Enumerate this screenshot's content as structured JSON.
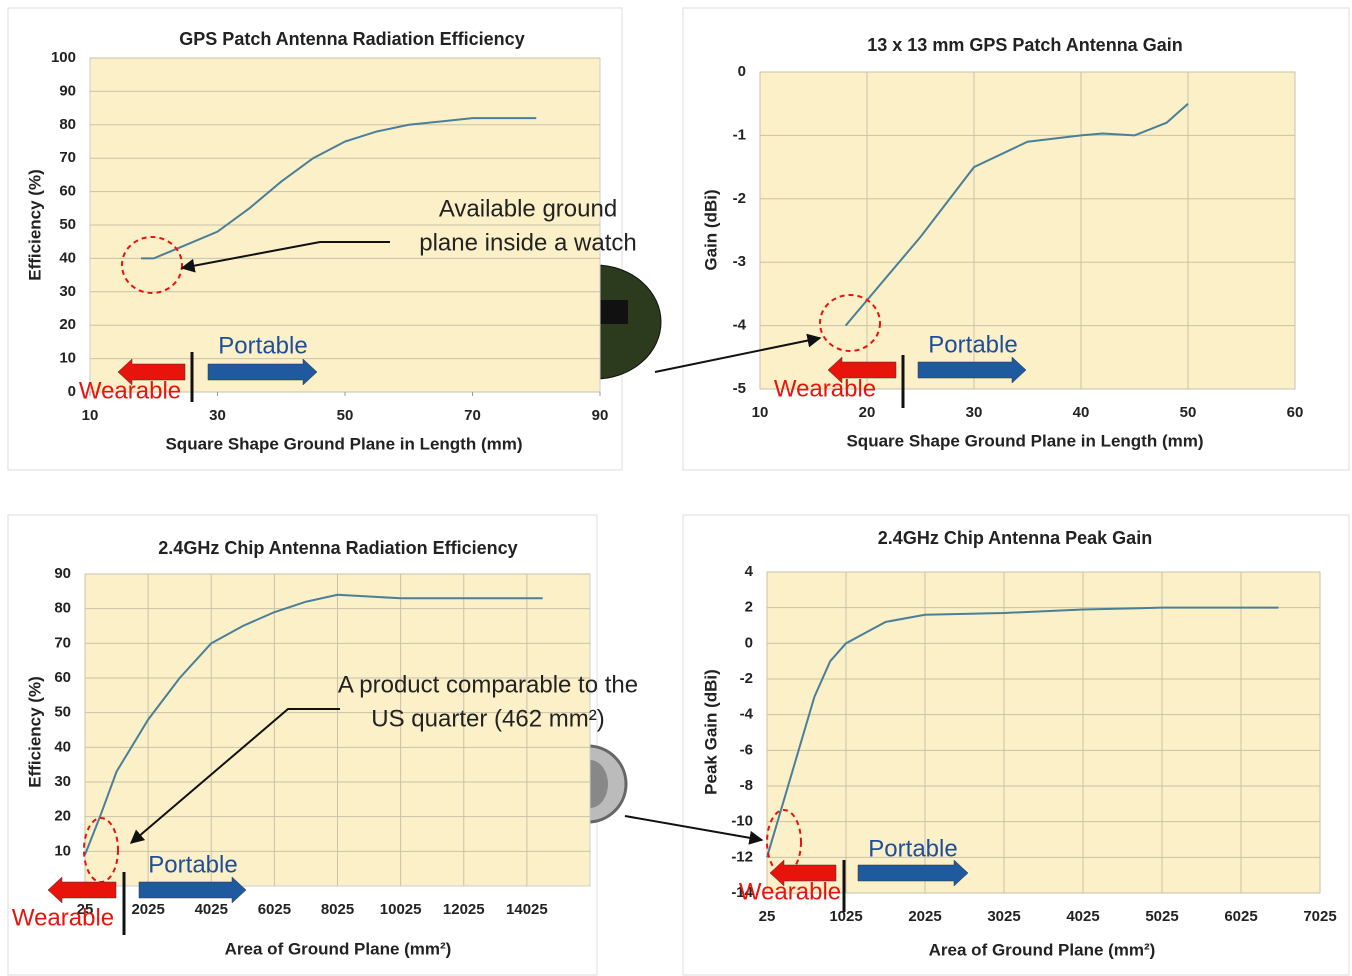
{
  "chart_data": [
    {
      "type": "line",
      "title": "GPS Patch Antenna Radiation Efficiency",
      "x_label": "Square Shape Ground Plane in Length (mm)",
      "y_label": "Efficiency (%)",
      "xlim": [
        10,
        90
      ],
      "xticks": [
        10,
        30,
        50,
        70,
        90
      ],
      "ylim": [
        0,
        100
      ],
      "yticks": [
        0,
        10,
        20,
        30,
        40,
        50,
        60,
        70,
        80,
        90,
        100
      ],
      "grid": "y",
      "x": [
        18,
        20,
        25,
        30,
        35,
        40,
        45,
        50,
        55,
        60,
        65,
        70,
        75,
        80
      ],
      "series": [
        {
          "color": "#4a7f9a",
          "values": [
            40,
            40,
            44,
            48,
            55,
            63,
            70,
            75,
            78,
            80,
            81,
            82,
            82,
            82
          ]
        }
      ],
      "annotations": [
        "Available ground",
        "plane inside a watch",
        "Portable",
        "Wearable"
      ]
    },
    {
      "type": "line",
      "title": "13 x 13 mm GPS Patch Antenna Gain",
      "x_label": "Square Shape Ground Plane in Length (mm)",
      "y_label": "Gain (dBi)",
      "xlim": [
        10,
        60
      ],
      "xticks": [
        10,
        20,
        30,
        40,
        50,
        60
      ],
      "ylim": [
        -5,
        0
      ],
      "yticks": [
        -5,
        -4,
        -3,
        -2,
        -1,
        0
      ],
      "grid": "both",
      "x": [
        18,
        20,
        25,
        30,
        35,
        40,
        42,
        45,
        48,
        50
      ],
      "series": [
        {
          "color": "#4a7f9a",
          "values": [
            -4,
            -3.6,
            -2.6,
            -1.5,
            -1.1,
            -1.0,
            -0.97,
            -1.0,
            -0.8,
            -0.5
          ]
        }
      ],
      "annotations": [
        "Portable",
        "Wearable"
      ]
    },
    {
      "type": "line",
      "title": "2.4GHz Chip Antenna Radiation Efficiency",
      "x_label": "Area of Ground Plane (mm²)",
      "y_label": "Efficiency (%)",
      "xlim": [
        25,
        16025
      ],
      "xticks": [
        25,
        2025,
        4025,
        6025,
        8025,
        10025,
        12025,
        14025
      ],
      "ylim": [
        0,
        90
      ],
      "yticks": [
        10,
        20,
        30,
        40,
        50,
        60,
        70,
        80,
        90
      ],
      "grid": "both",
      "x": [
        25,
        500,
        1025,
        2025,
        3025,
        4025,
        5025,
        6025,
        7025,
        8025,
        9025,
        10025,
        12025,
        14525
      ],
      "series": [
        {
          "color": "#4a7f9a",
          "values": [
            9,
            20,
            33,
            48,
            60,
            70,
            75,
            79,
            82,
            84,
            83.5,
            83,
            83,
            83
          ]
        }
      ],
      "annotations": [
        "A product comparable to the",
        "US quarter (462 mm²)",
        "Portable",
        "Wearable"
      ]
    },
    {
      "type": "line",
      "title": "2.4GHz Chip Antenna Peak Gain",
      "x_label": "Area of Ground Plane (mm²)",
      "y_label": "Peak Gain (dBi)",
      "xlim": [
        25,
        7025
      ],
      "xticks": [
        25,
        1025,
        2025,
        3025,
        4025,
        5025,
        6025,
        7025
      ],
      "ylim": [
        -14,
        4
      ],
      "yticks": [
        -14,
        -12,
        -10,
        -8,
        -6,
        -4,
        -2,
        0,
        2,
        4
      ],
      "grid": "both",
      "x": [
        25,
        225,
        425,
        625,
        825,
        1025,
        1525,
        2025,
        3025,
        4025,
        5025,
        6500
      ],
      "series": [
        {
          "color": "#4a7f9a",
          "values": [
            -12,
            -9,
            -6,
            -3,
            -1,
            0,
            1.2,
            1.6,
            1.7,
            1.9,
            2.0,
            2.0
          ]
        }
      ],
      "annotations": [
        "Portable",
        "Wearable"
      ]
    }
  ]
}
